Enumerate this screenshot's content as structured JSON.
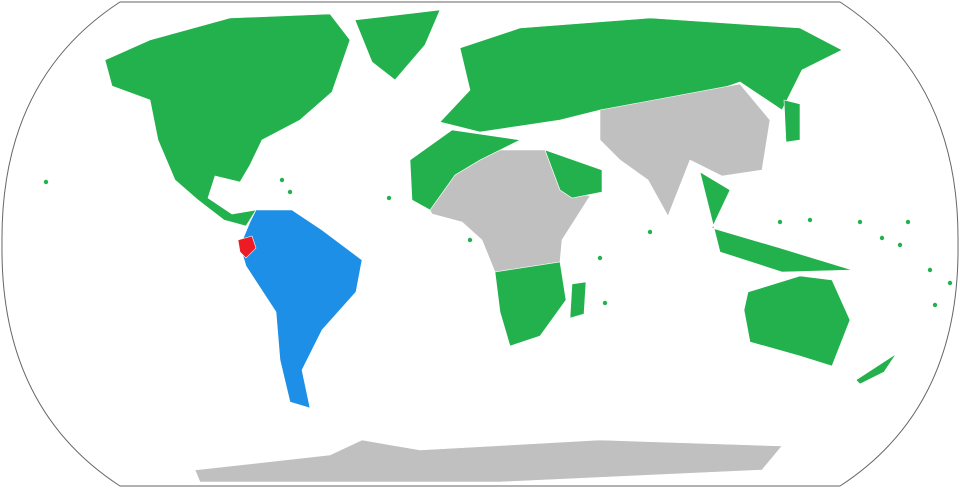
{
  "map": {
    "projection": "robinson-world",
    "colors": {
      "ocean": "#ffffff",
      "frame": "#666666",
      "green": "#22b14c",
      "gray": "#c0c0c0",
      "blue": "#1e8fe6",
      "red": "#ed1c24"
    },
    "regions": [
      {
        "id": "north-america",
        "category": "green"
      },
      {
        "id": "greenland",
        "category": "green"
      },
      {
        "id": "south-america",
        "category": "blue"
      },
      {
        "id": "ecuador",
        "category": "red"
      },
      {
        "id": "europe-russia",
        "category": "green"
      },
      {
        "id": "east-south-asia",
        "category": "gray"
      },
      {
        "id": "africa-central",
        "category": "gray"
      },
      {
        "id": "north-africa",
        "category": "green"
      },
      {
        "id": "arabia",
        "category": "green"
      },
      {
        "id": "southern-africa",
        "category": "green"
      },
      {
        "id": "southeast-asia",
        "category": "green"
      },
      {
        "id": "japan",
        "category": "green"
      },
      {
        "id": "madagascar",
        "category": "green"
      },
      {
        "id": "australia",
        "category": "green"
      },
      {
        "id": "new-zealand",
        "category": "green"
      },
      {
        "id": "antarctica",
        "category": "gray"
      }
    ]
  }
}
